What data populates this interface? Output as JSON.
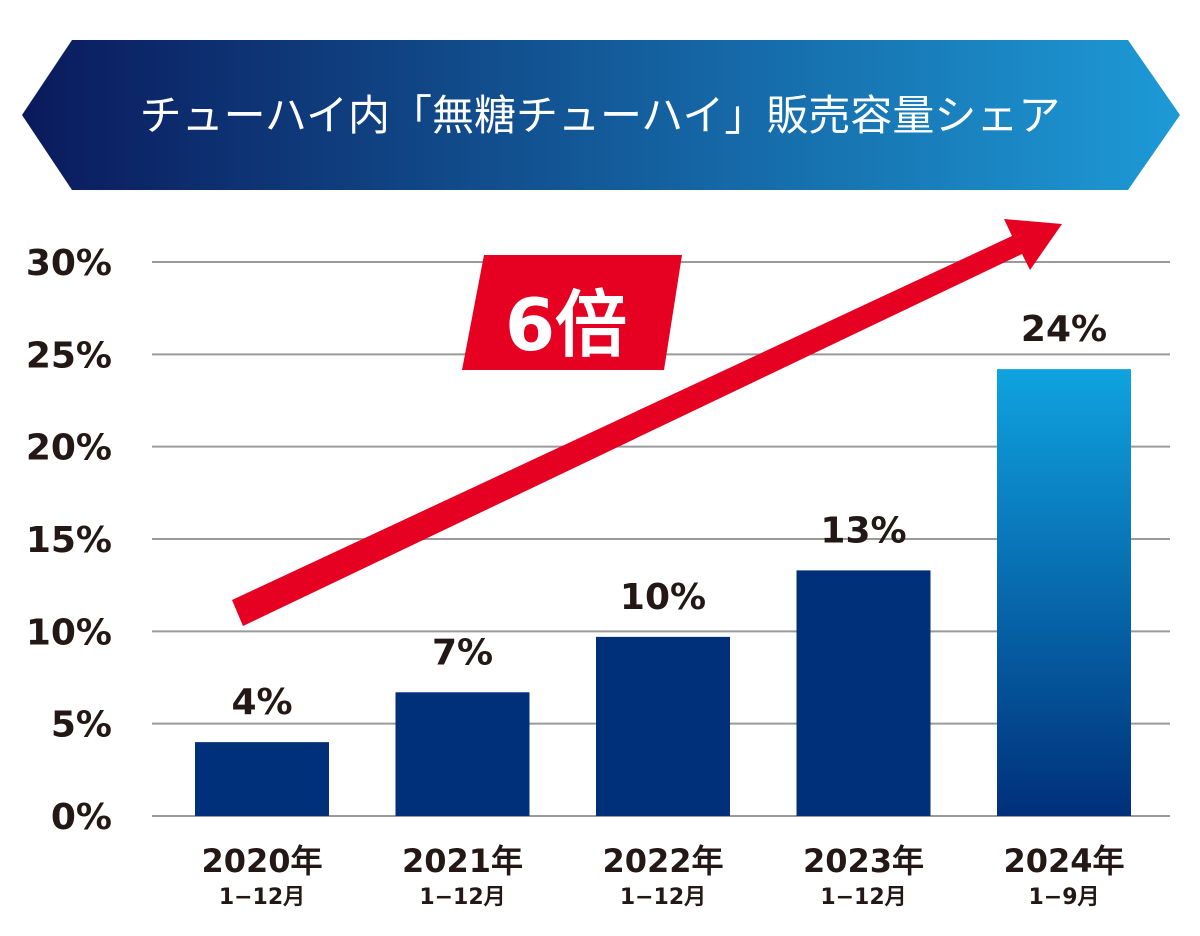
{
  "chart_data": {
    "type": "bar",
    "title": "チューハイ内「無糖チューハイ」販売容量シェア",
    "categories": [
      "2020年",
      "2021年",
      "2022年",
      "2023年",
      "2024年"
    ],
    "category_sublabels": [
      "1−12月",
      "1−12月",
      "1−12月",
      "1−12月",
      "1−9月"
    ],
    "values": [
      4.0,
      6.7,
      9.7,
      13.3,
      24.2
    ],
    "data_labels": [
      "4%",
      "7%",
      "10%",
      "13%",
      "24%"
    ],
    "ylim": [
      0,
      30
    ],
    "yticks": [
      "0%",
      "5%",
      "10%",
      "15%",
      "20%",
      "25%",
      "30%"
    ],
    "grid": true,
    "annotation": "6倍",
    "colors": {
      "bar": "#00307a",
      "highlight_bar_top": "#0fa3e0",
      "highlight_bar_bottom": "#00307a",
      "arrow": "#e60022",
      "banner_left": "#0a1a5c",
      "banner_right": "#1d9ad6",
      "grid": "#9a9a9a"
    }
  }
}
